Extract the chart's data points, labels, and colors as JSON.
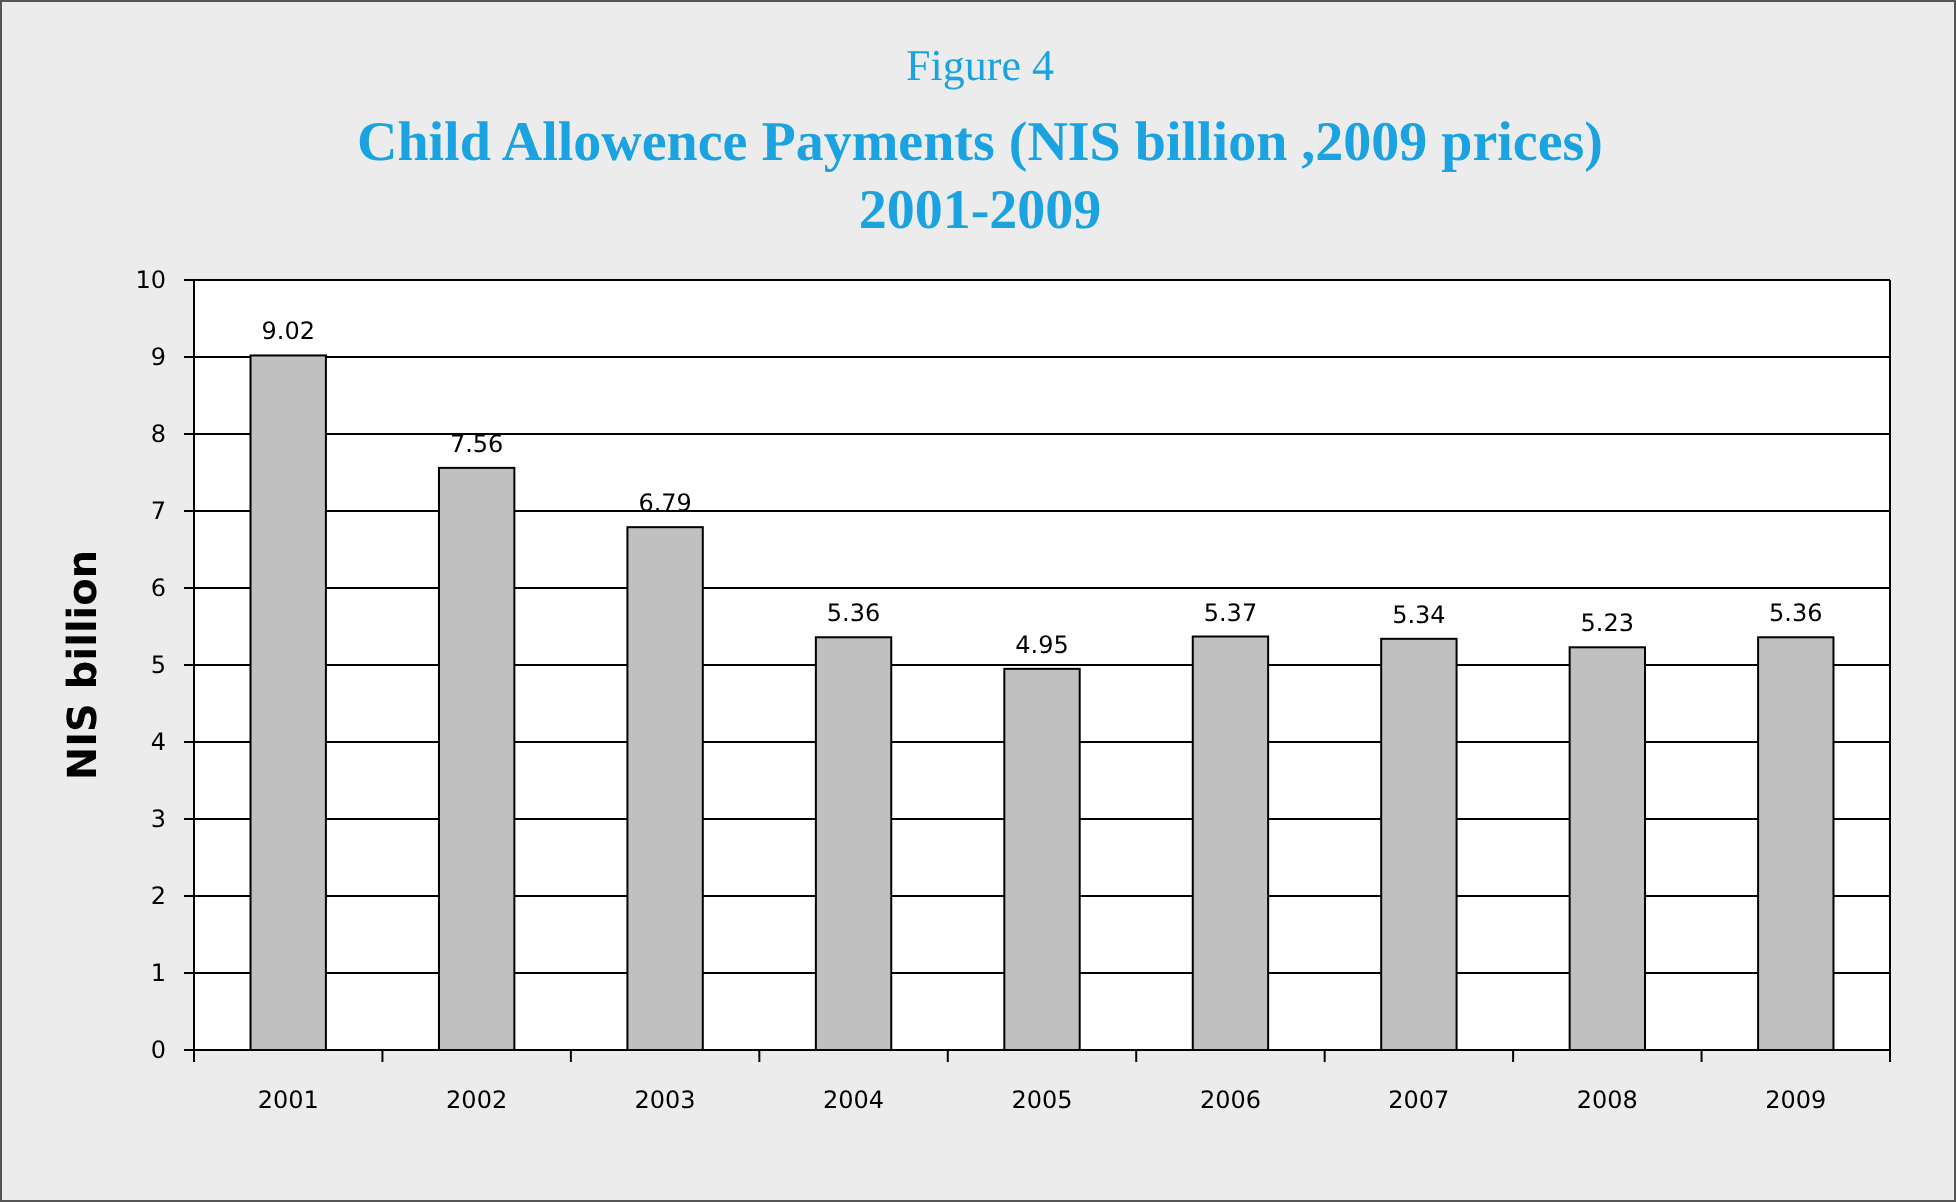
{
  "chart_data": {
    "type": "bar",
    "subtitle": "Figure 4",
    "title": "Child Allowence Payments (NIS billion ,2009 prices)\n2001-2009",
    "ylabel": "NIS billion",
    "categories": [
      "2001",
      "2002",
      "2003",
      "2004",
      "2005",
      "2006",
      "2007",
      "2008",
      "2009"
    ],
    "values": [
      9.02,
      7.56,
      6.79,
      5.36,
      4.95,
      5.37,
      5.34,
      5.23,
      5.36
    ],
    "color": "#c0c0c0",
    "ylim": [
      0,
      10
    ],
    "yticks": [
      0,
      1,
      2,
      3,
      4,
      5,
      6,
      7,
      8,
      9,
      10
    ],
    "grid": "y",
    "data_labels": true
  }
}
